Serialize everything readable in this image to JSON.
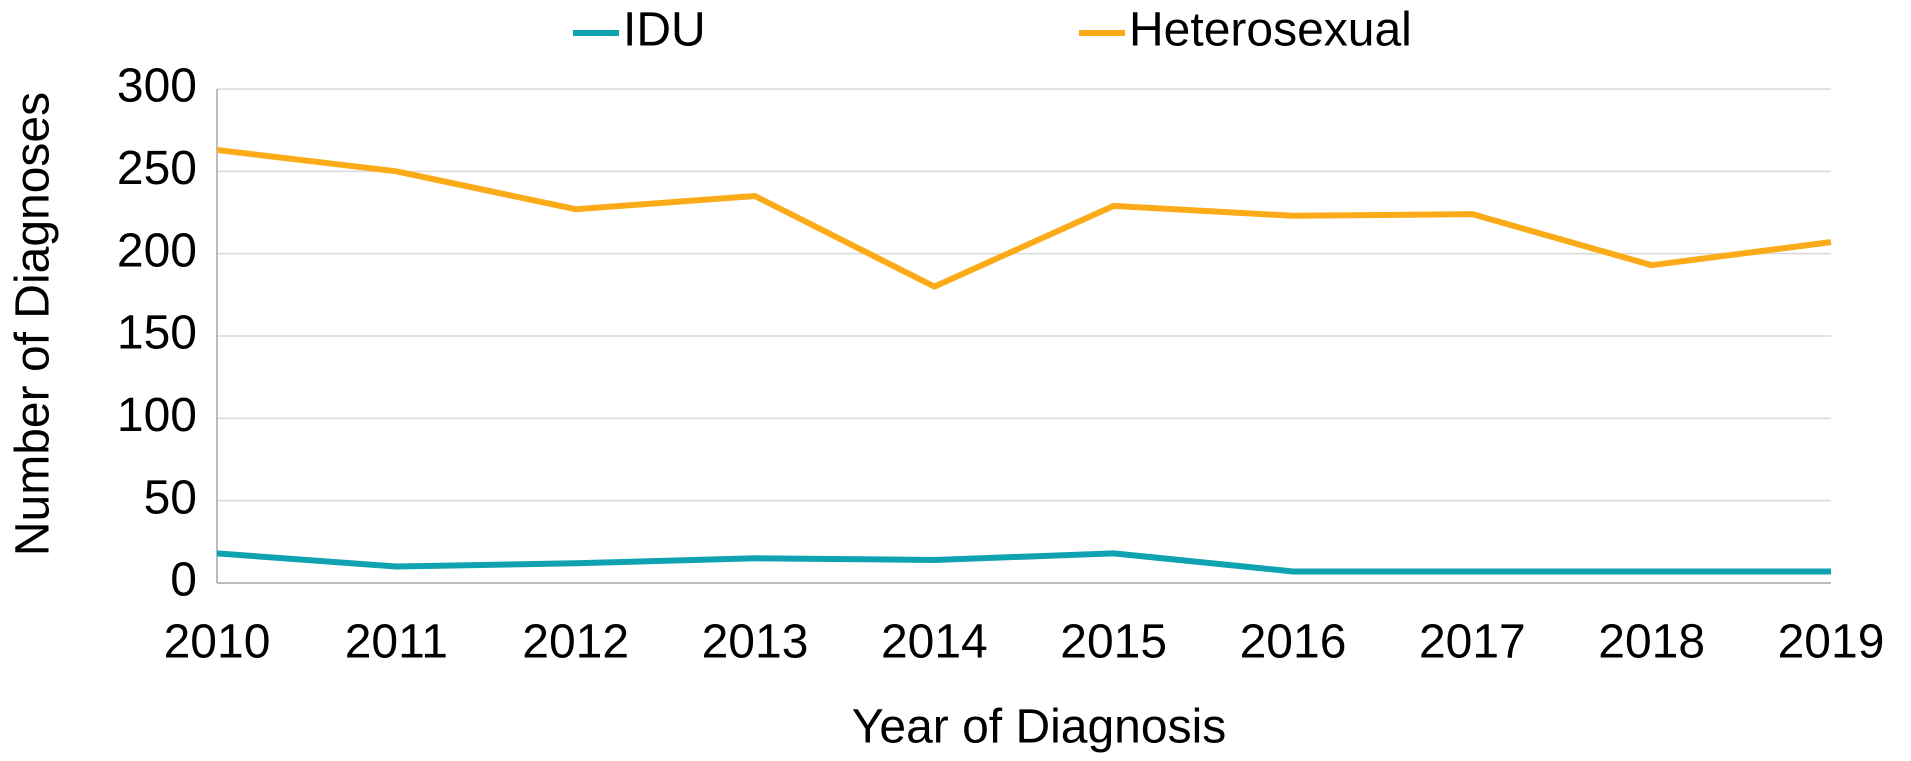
{
  "chart_data": {
    "type": "line",
    "categories": [
      "2010",
      "2011",
      "2012",
      "2013",
      "2014",
      "2015",
      "2016",
      "2017",
      "2018",
      "2019"
    ],
    "series": [
      {
        "name": "IDU",
        "color": "#0fa3b1",
        "values": [
          18,
          10,
          12,
          15,
          14,
          18,
          7,
          7,
          7,
          7
        ]
      },
      {
        "name": "Heterosexual",
        "color": "#fbab18",
        "values": [
          263,
          250,
          227,
          235,
          180,
          229,
          223,
          224,
          193,
          207
        ]
      }
    ],
    "xlabel": "Year of Diagnosis",
    "ylabel": "Number of Diagnoses",
    "ylim": [
      0,
      300
    ],
    "yticks": [
      0,
      50,
      100,
      150,
      200,
      250,
      300
    ],
    "grid": true,
    "legend": "top"
  }
}
